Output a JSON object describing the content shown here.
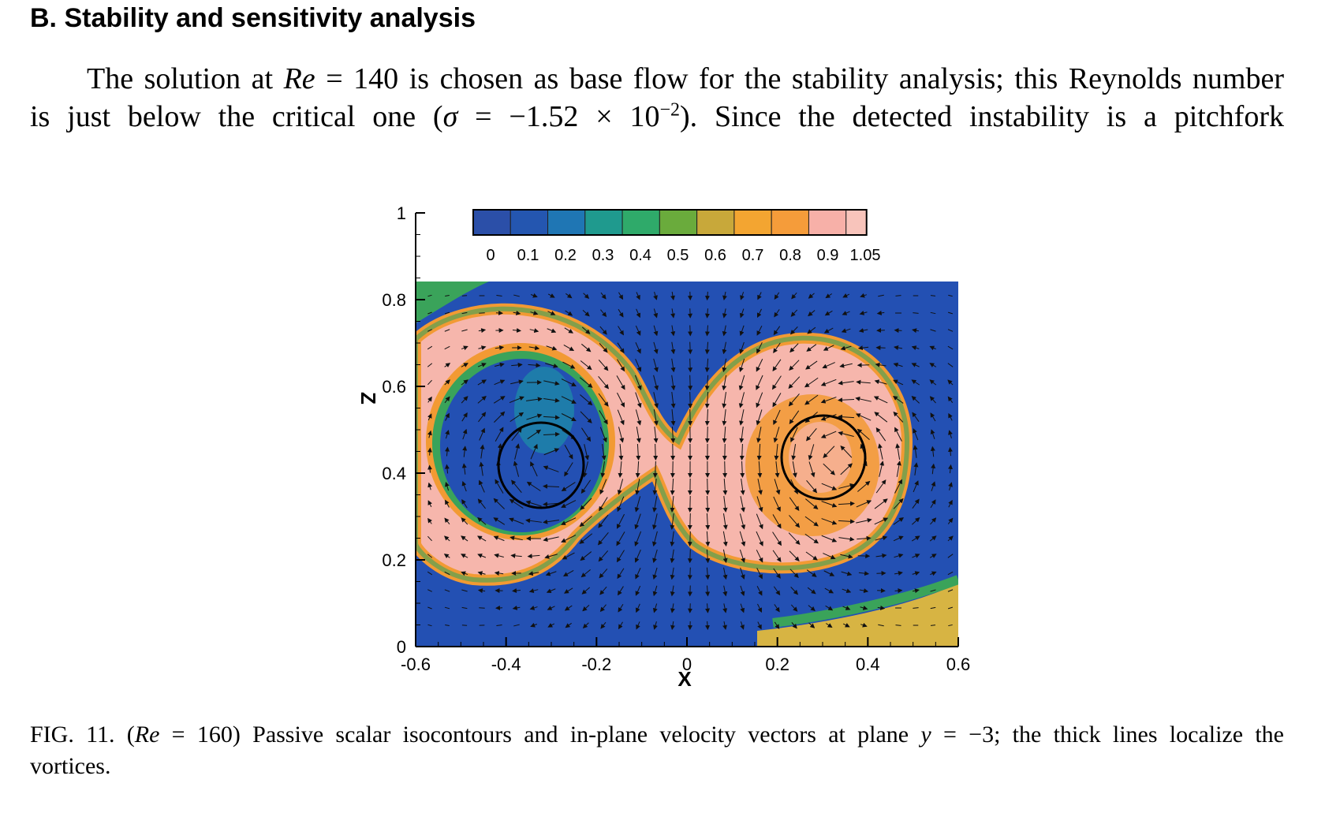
{
  "heading": "B. Stability and sensitivity analysis",
  "paragraph": {
    "line1_a": "The solution at ",
    "line1_re": "Re",
    "line1_b": " = 140 is chosen as base flow for the stability analysis; this Reynolds number",
    "line2_a": "is just below the critical one (",
    "line2_sigma": "σ",
    "line2_b": " = −1.52 × 10",
    "line2_exp": "−2",
    "line2_c": "). Since the detected instability is a pitchfork"
  },
  "figure": {
    "colorbar_ticks": [
      "0",
      "0.1",
      "0.2",
      "0.3",
      "0.4",
      "0.5",
      "0.6",
      "0.7",
      "0.8",
      "0.9",
      "1.05"
    ],
    "colorbar_colors": [
      "#2b4fa8",
      "#2456b0",
      "#1f76b4",
      "#1f9a8e",
      "#2faa6a",
      "#6aab3c",
      "#c8a83a",
      "#f3a531",
      "#f59c3a",
      "#f7b0a8",
      "#f8c4bb"
    ],
    "x_ticks": [
      "-0.6",
      "-0.4",
      "-0.2",
      "0",
      "0.2",
      "0.4",
      "0.6"
    ],
    "z_ticks": [
      "0",
      "0.2",
      "0.4",
      "0.6",
      "0.8",
      "1"
    ],
    "xlabel": "X",
    "zlabel": "Z",
    "colors": {
      "blue": "#2350b3",
      "pink": "#f6b6ac",
      "orange": "#f29a33",
      "green": "#3aa35a",
      "teal": "#1d87a8",
      "yellow": "#d7b443"
    }
  },
  "chart_data": {
    "type": "heatmap",
    "title": "",
    "xlabel": "X",
    "ylabel": "Z",
    "xlim": [
      -0.6,
      0.6
    ],
    "ylim": [
      0,
      1
    ],
    "x_ticks": [
      -0.6,
      -0.4,
      -0.2,
      0,
      0.2,
      0.4,
      0.6
    ],
    "y_ticks": [
      0,
      0.2,
      0.4,
      0.6,
      0.8,
      1
    ],
    "colorbar_levels": [
      0,
      0.1,
      0.2,
      0.3,
      0.4,
      0.5,
      0.6,
      0.7,
      0.8,
      0.9,
      1.05
    ],
    "vortex_centers": [
      {
        "x": -0.29,
        "z": 0.43,
        "radius": 0.1
      },
      {
        "x": 0.33,
        "z": 0.43,
        "radius": 0.1
      }
    ]
  },
  "caption": {
    "fig": "FIG. 11.",
    "re_open": " (",
    "re": "Re",
    "text": " = 160) Passive scalar isocontours and in-plane velocity vectors at plane ",
    "y": "y",
    "text2": " = −3; the thick lines localize the",
    "line2": "vortices."
  }
}
